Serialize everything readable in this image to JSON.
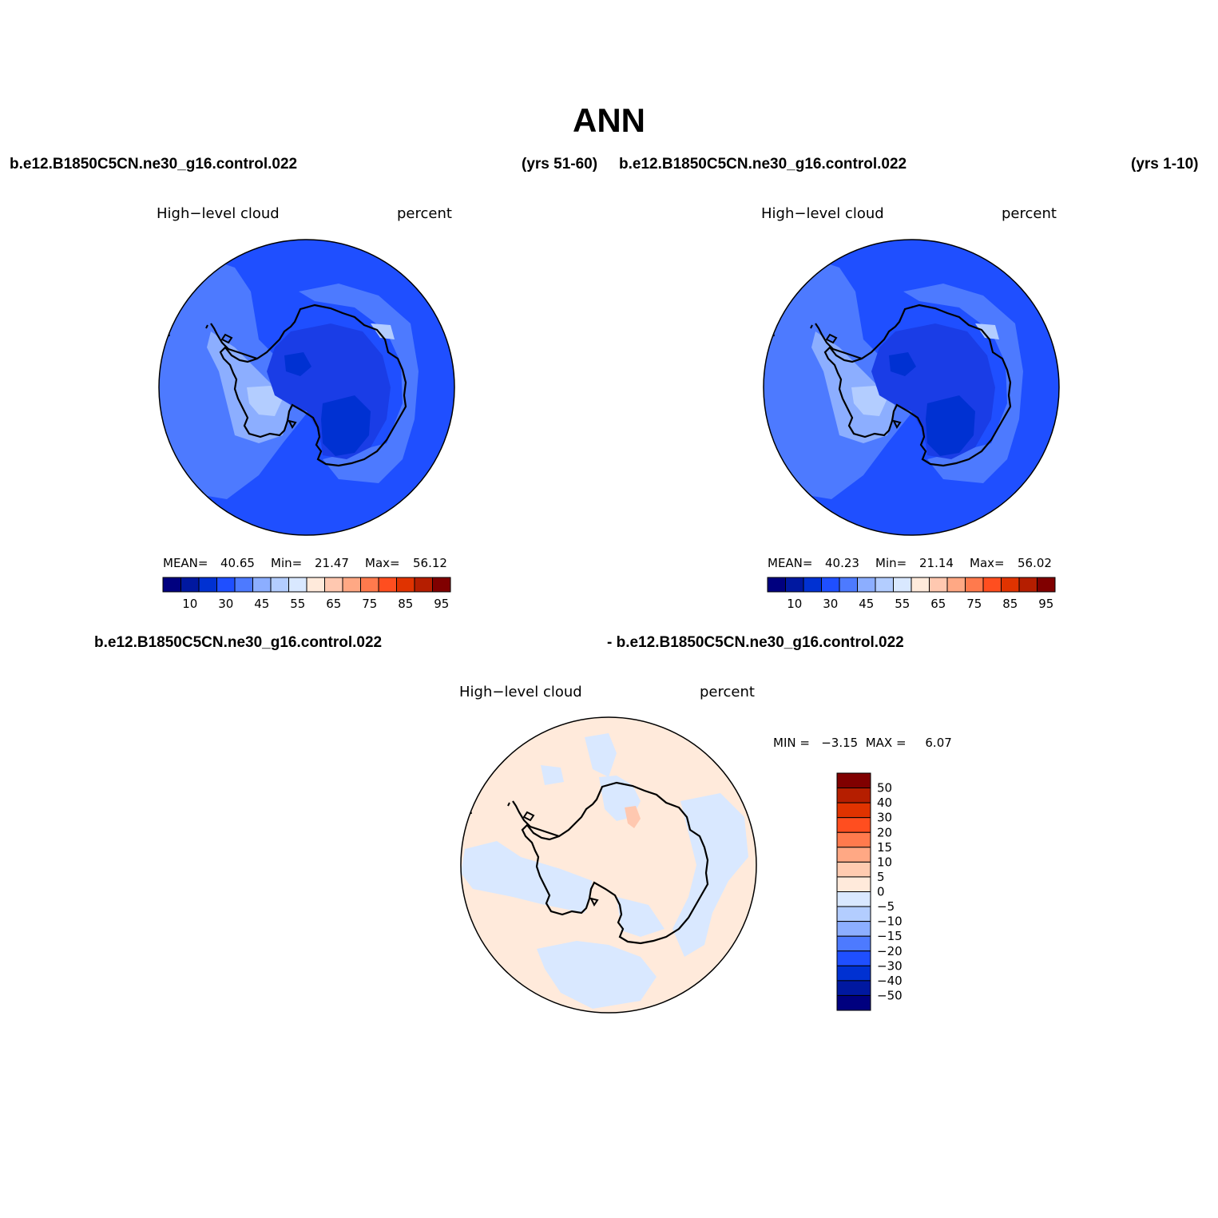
{
  "title": "ANN",
  "case_label": "b.e12.B1850C5CN.ne30_g16.control.022",
  "diff_case_label": "- b.e12.B1850C5CN.ne30_g16.control.022",
  "panels": [
    {
      "case": "b.e12.B1850C5CN.ne30_g16.control.022",
      "years": "(yrs 51-60)",
      "variable": "High−level cloud",
      "units": "percent",
      "mean_label": "MEAN=",
      "mean": "40.65",
      "min_label": "Min=",
      "min": "21.47",
      "max_label": "Max=",
      "max": "56.12"
    },
    {
      "case": "b.e12.B1850C5CN.ne30_g16.control.022",
      "years": "(yrs 1-10)",
      "variable": "High−level cloud",
      "units": "percent",
      "mean_label": "MEAN=",
      "mean": "40.23",
      "min_label": "Min=",
      "min": "21.14",
      "max_label": "Max=",
      "max": "56.02"
    }
  ],
  "diff_panel": {
    "variable": "High−level cloud",
    "units": "percent",
    "minmax_text": "MIN =   −3.15  MAX =     6.07"
  },
  "colorbar": {
    "colors": [
      "#00007f",
      "#0018a0",
      "#0031d2",
      "#1f4fff",
      "#4d7aff",
      "#8caeff",
      "#b3cdff",
      "#d9e8ff",
      "#ffeadb",
      "#ffc8b0",
      "#ffa884",
      "#ff7a4d",
      "#ff4e1f",
      "#e03300",
      "#b51e00",
      "#800000"
    ],
    "labels": [
      "10",
      "30",
      "45",
      "55",
      "65",
      "75",
      "85",
      "95"
    ]
  },
  "diff_colorbar": {
    "colors": [
      "#800000",
      "#b51e00",
      "#e03300",
      "#ff4e1f",
      "#ff7a4d",
      "#ffa884",
      "#ffcbb0",
      "#ffeadb",
      "#d9e8ff",
      "#b3cdff",
      "#8caeff",
      "#4d7aff",
      "#1f4fff",
      "#0031d2",
      "#0018a0",
      "#00007f"
    ],
    "labels": [
      "50",
      "40",
      "30",
      "20",
      "15",
      "10",
      "5",
      "0",
      "−5",
      "−10",
      "−15",
      "−20",
      "−30",
      "−40",
      "−50"
    ]
  },
  "map_colors": {
    "ocean_base": "#1f4fff",
    "level_45": "#4d7aff",
    "level_50": "#8caeff",
    "level_55": "#b3cdff",
    "level_30": "#0031d2",
    "level_35": "#1a3de6",
    "diff_positive": "#ffeadb",
    "diff_negative": "#d9e8ff",
    "diff_strong_positive": "#ffc8b0"
  }
}
